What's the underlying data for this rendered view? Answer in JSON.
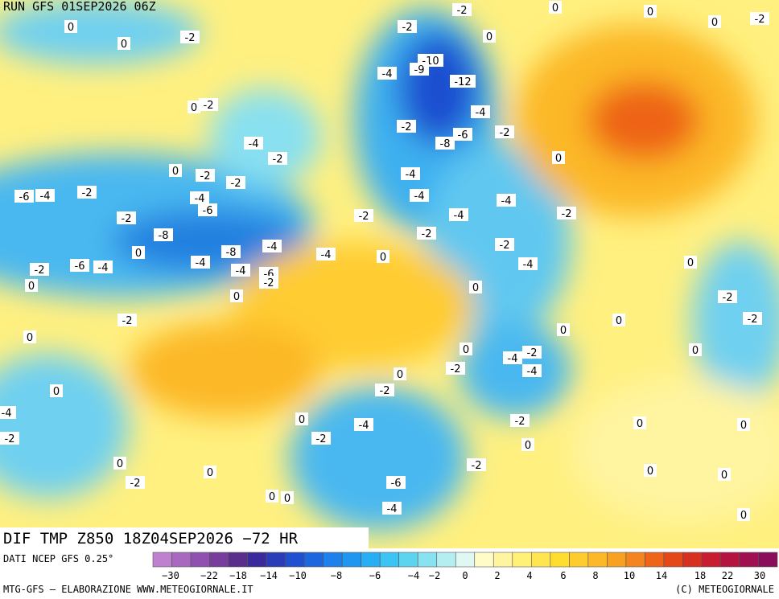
{
  "header": {
    "run": "RUN GFS 01SEP2026 06Z"
  },
  "map": {
    "labels": [
      "0",
      "0",
      "-2",
      "-2",
      "-2",
      "0",
      "0",
      "0",
      "-2",
      "0",
      "-10",
      "-4",
      "-9",
      "-12",
      "0",
      "-2",
      "-4",
      "-2",
      "-6",
      "-8",
      "-2",
      "-4",
      "-2",
      "0",
      "0",
      "-2",
      "-2",
      "-4",
      "-6",
      "-4",
      "-2",
      "-4",
      "-6",
      "-4",
      "-4",
      "-2",
      "-4",
      "-2",
      "-2",
      "-8",
      "-2",
      "-2",
      "-4",
      "-4",
      "-8",
      "-4",
      "0",
      "0",
      "-6",
      "-4",
      "-2",
      "-4",
      "-6",
      "-2",
      "-4",
      "0",
      "0",
      "0",
      "0",
      "-2",
      "-2",
      "-2",
      "0",
      "0",
      "0",
      "0",
      "-4",
      "-2",
      "0",
      "-2",
      "-4",
      "0",
      "0",
      "-2",
      "-4",
      "-2",
      "-2",
      "0",
      "0",
      "0",
      "-4",
      "-2",
      "0",
      "-2",
      "0",
      "0",
      "-2",
      "0",
      "0",
      "-6",
      "0",
      "0",
      "-4",
      "0"
    ]
  },
  "footer": {
    "title": "DIF TMP Z850 18Z04SEP2026 −72 HR",
    "source": "DATI NCEP GFS 0.25°",
    "credit": "MTG-GFS — ELABORAZIONE WWW.METEOGIORNALE.IT",
    "copyright": "(C) METEOGIORNALE"
  },
  "legend": {
    "colors": [
      "#c080d0",
      "#a868c0",
      "#9050b0",
      "#783c9c",
      "#5a2c8c",
      "#3a2a9c",
      "#2a3cb8",
      "#1e50d0",
      "#1c66e0",
      "#1e80ec",
      "#2096f0",
      "#28aef4",
      "#3cc4f4",
      "#5cd4f0",
      "#88e2f0",
      "#b4eef0",
      "#e0f8f4",
      "#fffcc8",
      "#fff4a0",
      "#fff078",
      "#ffe650",
      "#ffdc30",
      "#ffcc30",
      "#fcb828",
      "#f8a020",
      "#f48420",
      "#ee6418",
      "#e44818",
      "#d83020",
      "#c81c30",
      "#b41440",
      "#a01050",
      "#8c0c5c"
    ],
    "ticks": [
      "−30",
      "−22",
      "−18",
      "−14",
      "−10",
      "−8",
      "−6",
      "−4",
      "−2",
      "0",
      "2",
      "4",
      "6",
      "8",
      "10",
      "14",
      "18",
      "22",
      "30"
    ]
  }
}
